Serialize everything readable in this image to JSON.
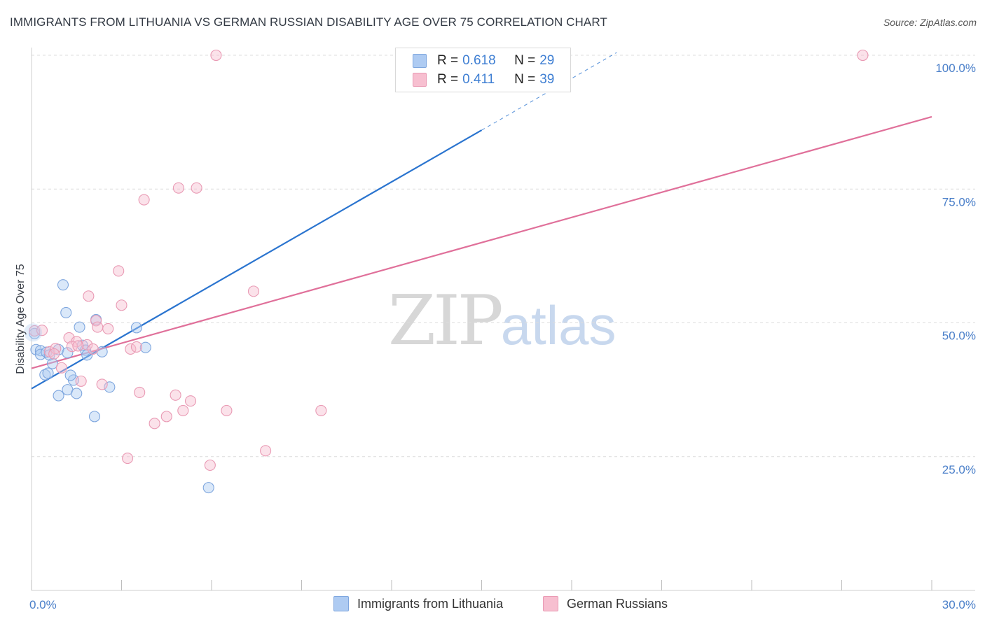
{
  "header": {
    "title": "IMMIGRANTS FROM LITHUANIA VS GERMAN RUSSIAN DISABILITY AGE OVER 75 CORRELATION CHART",
    "source": "Source: ZipAtlas.com"
  },
  "watermark": {
    "zip": "ZIP",
    "atlas": "atlas"
  },
  "legend": {
    "rows": [
      {
        "r_label": "R =",
        "r_value": "0.618",
        "n_label": "N =",
        "n_value": "29",
        "color": "#aecbf2",
        "border": "#7ea6de"
      },
      {
        "r_label": "R =",
        "r_value": "0.411",
        "n_label": "N =",
        "n_value": "39",
        "color": "#f7bfd0",
        "border": "#e99ab4"
      }
    ]
  },
  "bottom_legend": {
    "items": [
      {
        "label": "Immigrants from Lithuania",
        "color": "#aecbf2",
        "border": "#7ea6de"
      },
      {
        "label": "German Russians",
        "color": "#f7bfd0",
        "border": "#e99ab4"
      }
    ]
  },
  "chart_data": {
    "type": "scatter",
    "title": "IMMIGRANTS FROM LITHUANIA VS GERMAN RUSSIAN DISABILITY AGE OVER 75 CORRELATION CHART",
    "xlabel": "",
    "ylabel": "Disability Age Over 75",
    "xlim": [
      0,
      30
    ],
    "ylim": [
      0,
      100
    ],
    "x_tick_labels": [
      {
        "value": 0,
        "label": "0.0%"
      },
      {
        "value": 30,
        "label": "30.0%"
      }
    ],
    "x_minor_ticks": [
      0,
      3,
      6,
      9,
      12,
      15,
      18,
      21,
      24,
      27,
      30
    ],
    "y_ticks": [
      {
        "value": 25,
        "label": "25.0%"
      },
      {
        "value": 50,
        "label": "50.0%"
      },
      {
        "value": 75,
        "label": "75.0%"
      },
      {
        "value": 100,
        "label": "100.0%"
      }
    ],
    "grid": true,
    "series": [
      {
        "name": "Immigrants from Lithuania",
        "color": "#7ea6de",
        "fill": "rgba(174,203,242,0.45)",
        "line_color": "#2a74cf",
        "trend": {
          "x0": 0,
          "y0": 37.7,
          "x1": 15,
          "y1": 86.0,
          "dash_to_x": 19.5,
          "dash_to_y": 100.5
        },
        "points": [
          [
            0.1,
            48.0
          ],
          [
            0.15,
            45.0
          ],
          [
            0.3,
            44.8
          ],
          [
            0.3,
            44.1
          ],
          [
            0.5,
            44.5
          ],
          [
            0.45,
            40.3
          ],
          [
            0.55,
            40.6
          ],
          [
            0.7,
            42.4
          ],
          [
            0.9,
            45.0
          ],
          [
            1.05,
            57.1
          ],
          [
            1.15,
            51.9
          ],
          [
            0.9,
            36.4
          ],
          [
            1.2,
            37.5
          ],
          [
            1.4,
            39.3
          ],
          [
            1.5,
            36.8
          ],
          [
            1.6,
            49.2
          ],
          [
            1.7,
            45.8
          ],
          [
            1.8,
            44.9
          ],
          [
            1.85,
            44.0
          ],
          [
            2.15,
            50.6
          ],
          [
            2.35,
            44.6
          ],
          [
            2.6,
            38.0
          ],
          [
            2.1,
            32.5
          ],
          [
            3.5,
            49.1
          ],
          [
            3.8,
            45.4
          ],
          [
            5.9,
            19.2
          ],
          [
            1.3,
            40.2
          ],
          [
            1.2,
            44.4
          ],
          [
            0.6,
            44.0
          ]
        ]
      },
      {
        "name": "German Russians",
        "color": "#e99ab4",
        "fill": "rgba(247,191,208,0.45)",
        "line_color": "#e0709a",
        "trend": {
          "x0": 0,
          "y0": 41.5,
          "x1": 30,
          "y1": 88.5
        },
        "points": [
          [
            0.1,
            48.5
          ],
          [
            0.35,
            48.6
          ],
          [
            0.6,
            44.6
          ],
          [
            0.8,
            45.2
          ],
          [
            1.0,
            41.6
          ],
          [
            1.25,
            47.2
          ],
          [
            1.5,
            46.5
          ],
          [
            1.65,
            39.1
          ],
          [
            1.85,
            45.9
          ],
          [
            1.9,
            55.0
          ],
          [
            2.15,
            50.4
          ],
          [
            2.2,
            49.2
          ],
          [
            2.35,
            38.5
          ],
          [
            2.55,
            48.9
          ],
          [
            2.9,
            59.7
          ],
          [
            3.0,
            53.3
          ],
          [
            3.2,
            24.7
          ],
          [
            3.3,
            45.1
          ],
          [
            3.5,
            45.5
          ],
          [
            3.6,
            37.0
          ],
          [
            3.75,
            73.0
          ],
          [
            4.1,
            31.2
          ],
          [
            4.5,
            32.5
          ],
          [
            4.8,
            36.5
          ],
          [
            4.9,
            75.2
          ],
          [
            5.05,
            33.6
          ],
          [
            5.3,
            35.4
          ],
          [
            5.5,
            75.2
          ],
          [
            5.95,
            23.4
          ],
          [
            6.15,
            100.0
          ],
          [
            6.5,
            33.6
          ],
          [
            7.4,
            55.9
          ],
          [
            7.8,
            26.1
          ],
          [
            9.65,
            33.6
          ],
          [
            27.7,
            100.0
          ],
          [
            1.35,
            45.6
          ],
          [
            0.75,
            44.2
          ],
          [
            2.05,
            45.1
          ],
          [
            1.55,
            45.7
          ]
        ]
      }
    ]
  }
}
